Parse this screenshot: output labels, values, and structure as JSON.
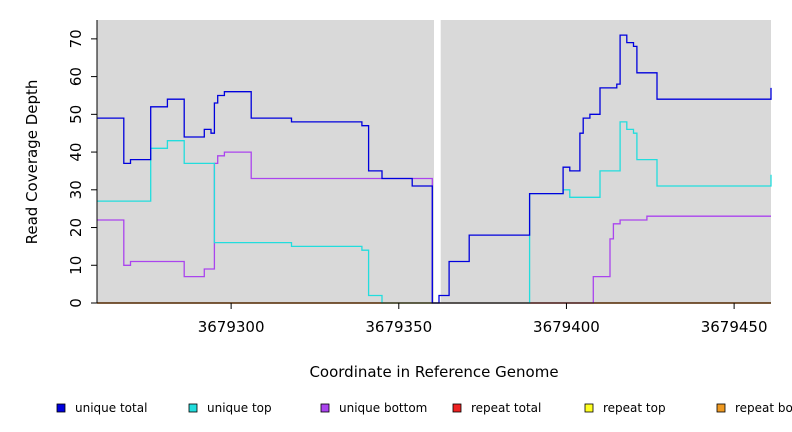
{
  "chart_data": {
    "type": "line",
    "title": "",
    "xlabel": "Coordinate in Reference Genome",
    "ylabel": "Read Coverage Depth",
    "xlim": [
      3679260,
      3679461
    ],
    "ylim": [
      0,
      75
    ],
    "xticks": [
      3679300,
      3679350,
      3679400,
      3679450
    ],
    "yticks": [
      0,
      10,
      20,
      30,
      40,
      50,
      60,
      70
    ],
    "panel_background": "#d9d9d9",
    "gap": [
      3679360.5,
      3679362.5
    ],
    "legend_position": "bottom",
    "series": [
      {
        "name": "unique total",
        "color": "#0000dd",
        "points": [
          [
            3679260,
            49
          ],
          [
            3679268,
            49
          ],
          [
            3679268,
            37
          ],
          [
            3679270,
            37
          ],
          [
            3679270,
            38
          ],
          [
            3679276,
            38
          ],
          [
            3679276,
            52
          ],
          [
            3679281,
            52
          ],
          [
            3679281,
            54
          ],
          [
            3679286,
            54
          ],
          [
            3679286,
            44
          ],
          [
            3679292,
            44
          ],
          [
            3679292,
            46
          ],
          [
            3679294,
            46
          ],
          [
            3679294,
            45
          ],
          [
            3679295,
            45
          ],
          [
            3679295,
            53
          ],
          [
            3679296,
            53
          ],
          [
            3679296,
            55
          ],
          [
            3679298,
            55
          ],
          [
            3679298,
            56
          ],
          [
            3679306,
            56
          ],
          [
            3679306,
            49
          ],
          [
            3679318,
            49
          ],
          [
            3679318,
            48
          ],
          [
            3679339,
            48
          ],
          [
            3679339,
            47
          ],
          [
            3679341,
            47
          ],
          [
            3679341,
            35
          ],
          [
            3679345,
            35
          ],
          [
            3679345,
            33
          ],
          [
            3679354,
            33
          ],
          [
            3679354,
            31
          ],
          [
            3679360,
            31
          ],
          [
            3679360,
            0
          ],
          [
            3679362,
            0
          ],
          [
            3679362,
            2
          ],
          [
            3679365,
            2
          ],
          [
            3679365,
            11
          ],
          [
            3679371,
            11
          ],
          [
            3679371,
            18
          ],
          [
            3679389,
            18
          ],
          [
            3679389,
            29
          ],
          [
            3679399,
            29
          ],
          [
            3679399,
            36
          ],
          [
            3679401,
            36
          ],
          [
            3679401,
            35
          ],
          [
            3679404,
            35
          ],
          [
            3679404,
            45
          ],
          [
            3679405,
            45
          ],
          [
            3679405,
            49
          ],
          [
            3679407,
            49
          ],
          [
            3679407,
            50
          ],
          [
            3679410,
            50
          ],
          [
            3679410,
            57
          ],
          [
            3679415,
            57
          ],
          [
            3679415,
            58
          ],
          [
            3679416,
            58
          ],
          [
            3679416,
            71
          ],
          [
            3679418,
            71
          ],
          [
            3679418,
            69
          ],
          [
            3679420,
            69
          ],
          [
            3679420,
            68
          ],
          [
            3679421,
            68
          ],
          [
            3679421,
            61
          ],
          [
            3679427,
            61
          ],
          [
            3679427,
            54
          ],
          [
            3679461,
            54
          ],
          [
            3679461,
            57
          ]
        ]
      },
      {
        "name": "unique top",
        "color": "#22dddd",
        "points": [
          [
            3679260,
            27
          ],
          [
            3679276,
            27
          ],
          [
            3679276,
            41
          ],
          [
            3679281,
            41
          ],
          [
            3679281,
            43
          ],
          [
            3679286,
            43
          ],
          [
            3679286,
            37
          ],
          [
            3679295,
            37
          ],
          [
            3679295,
            16
          ],
          [
            3679318,
            16
          ],
          [
            3679318,
            15
          ],
          [
            3679339,
            15
          ],
          [
            3679339,
            14
          ],
          [
            3679341,
            14
          ],
          [
            3679341,
            2
          ],
          [
            3679345,
            2
          ],
          [
            3679345,
            0
          ],
          [
            3679360,
            0
          ],
          [
            3679360,
            0
          ],
          [
            3679389,
            0
          ],
          [
            3679389,
            29
          ],
          [
            3679399,
            29
          ],
          [
            3679399,
            30
          ],
          [
            3679401,
            30
          ],
          [
            3679401,
            28
          ],
          [
            3679410,
            28
          ],
          [
            3679410,
            35
          ],
          [
            3679416,
            35
          ],
          [
            3679416,
            48
          ],
          [
            3679418,
            48
          ],
          [
            3679418,
            46
          ],
          [
            3679420,
            46
          ],
          [
            3679420,
            45
          ],
          [
            3679421,
            45
          ],
          [
            3679421,
            38
          ],
          [
            3679427,
            38
          ],
          [
            3679427,
            31
          ],
          [
            3679461,
            31
          ],
          [
            3679461,
            34
          ]
        ]
      },
      {
        "name": "unique bottom",
        "color": "#aa44ee",
        "points": [
          [
            3679260,
            22
          ],
          [
            3679268,
            22
          ],
          [
            3679268,
            10
          ],
          [
            3679270,
            10
          ],
          [
            3679270,
            11
          ],
          [
            3679286,
            11
          ],
          [
            3679286,
            7
          ],
          [
            3679292,
            7
          ],
          [
            3679292,
            9
          ],
          [
            3679295,
            9
          ],
          [
            3679295,
            37
          ],
          [
            3679296,
            37
          ],
          [
            3679296,
            39
          ],
          [
            3679298,
            39
          ],
          [
            3679298,
            40
          ],
          [
            3679306,
            40
          ],
          [
            3679306,
            33
          ],
          [
            3679345,
            33
          ],
          [
            3679345,
            33
          ],
          [
            3679354,
            33
          ],
          [
            3679354,
            33
          ],
          [
            3679360,
            33
          ],
          [
            3679360,
            0
          ],
          [
            3679408,
            0
          ],
          [
            3679408,
            7
          ],
          [
            3679413,
            7
          ],
          [
            3679413,
            17
          ],
          [
            3679414,
            17
          ],
          [
            3679414,
            21
          ],
          [
            3679416,
            21
          ],
          [
            3679416,
            22
          ],
          [
            3679424,
            22
          ],
          [
            3679424,
            23
          ],
          [
            3679461,
            23
          ]
        ]
      },
      {
        "name": "repeat total",
        "color": "#ee2222",
        "points": [
          [
            3679260,
            0
          ],
          [
            3679461,
            0
          ]
        ]
      },
      {
        "name": "repeat top",
        "color": "#ffff22",
        "points": [
          [
            3679260,
            0
          ],
          [
            3679461,
            0
          ]
        ]
      },
      {
        "name": "repeat bottom",
        "color": "#ee9922",
        "points": [
          [
            3679260,
            0
          ],
          [
            3679461,
            0
          ]
        ]
      }
    ]
  }
}
